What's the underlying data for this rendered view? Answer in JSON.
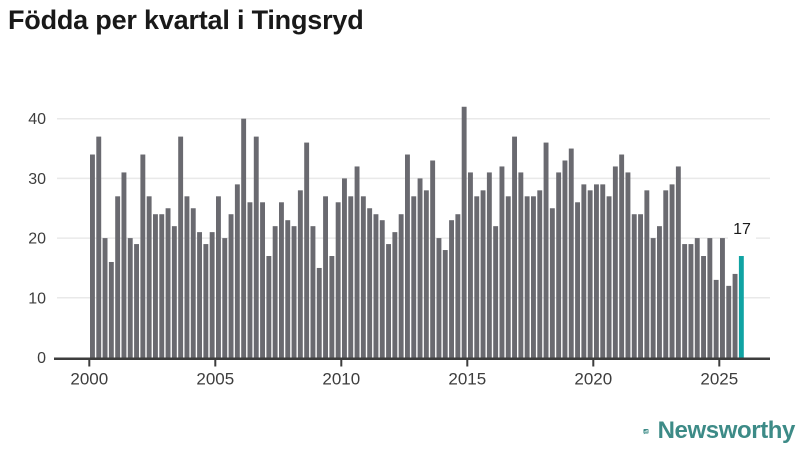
{
  "page": {
    "title": "Födda per kvartal i Tingsryd"
  },
  "chart_data": {
    "type": "bar",
    "title": "Födda per kvartal i Tingsryd",
    "x_unit": "quarter",
    "x_range": "2000 Q1 – 2025 Q4",
    "ylim": [
      0,
      42
    ],
    "yticks": [
      0,
      10,
      20,
      30,
      40
    ],
    "xticks": [
      2000,
      2005,
      2010,
      2015,
      2020,
      2025
    ],
    "grid": true,
    "bar_color": "#6a6a70",
    "highlight_color": "#10a3a3",
    "annotation": {
      "text": "17",
      "target": "last-bar"
    },
    "years": [
      {
        "year": 2000,
        "values": [
          34,
          37,
          20,
          16
        ]
      },
      {
        "year": 2001,
        "values": [
          27,
          31,
          20,
          19
        ]
      },
      {
        "year": 2002,
        "values": [
          34,
          27,
          24,
          24
        ]
      },
      {
        "year": 2003,
        "values": [
          25,
          22,
          37,
          27
        ]
      },
      {
        "year": 2004,
        "values": [
          25,
          21,
          19,
          21
        ]
      },
      {
        "year": 2005,
        "values": [
          27,
          20,
          24,
          29
        ]
      },
      {
        "year": 2006,
        "values": [
          40,
          26,
          37,
          26
        ]
      },
      {
        "year": 2007,
        "values": [
          17,
          22,
          26,
          23
        ]
      },
      {
        "year": 2008,
        "values": [
          22,
          28,
          36,
          22
        ]
      },
      {
        "year": 2009,
        "values": [
          15,
          27,
          17,
          26
        ]
      },
      {
        "year": 2010,
        "values": [
          30,
          27,
          32,
          27
        ]
      },
      {
        "year": 2011,
        "values": [
          25,
          24,
          23,
          19
        ]
      },
      {
        "year": 2012,
        "values": [
          21,
          24,
          34,
          27
        ]
      },
      {
        "year": 2013,
        "values": [
          30,
          28,
          33,
          20
        ]
      },
      {
        "year": 2014,
        "values": [
          18,
          23,
          24,
          42
        ]
      },
      {
        "year": 2015,
        "values": [
          31,
          27,
          28,
          31
        ]
      },
      {
        "year": 2016,
        "values": [
          22,
          32,
          27,
          37
        ]
      },
      {
        "year": 2017,
        "values": [
          31,
          27,
          27,
          28
        ]
      },
      {
        "year": 2018,
        "values": [
          36,
          25,
          31,
          33
        ]
      },
      {
        "year": 2019,
        "values": [
          35,
          26,
          29,
          28
        ]
      },
      {
        "year": 2020,
        "values": [
          29,
          29,
          27,
          32
        ]
      },
      {
        "year": 2021,
        "values": [
          34,
          31,
          24,
          24
        ]
      },
      {
        "year": 2022,
        "values": [
          28,
          20,
          22,
          28
        ]
      },
      {
        "year": 2023,
        "values": [
          29,
          32,
          19,
          19
        ]
      },
      {
        "year": 2024,
        "values": [
          20,
          17,
          20,
          13
        ]
      },
      {
        "year": 2025,
        "values": [
          20,
          12,
          14,
          17
        ]
      }
    ]
  },
  "branding": {
    "name": "Newsworthy",
    "color": "#3d8b87"
  }
}
